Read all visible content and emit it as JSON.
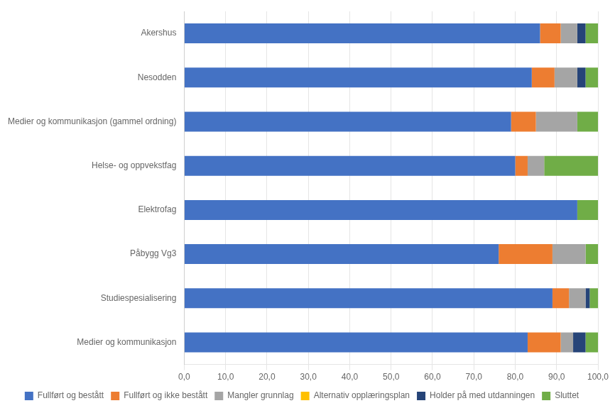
{
  "chart_data": {
    "type": "bar",
    "orientation": "horizontal",
    "stacked": true,
    "categories": [
      "Medier og kommunikasjon",
      "Studiespesialisering",
      "Påbygg Vg3",
      "Elektrofag",
      "Helse- og oppvekstfag",
      "Medier og kommunikasjon (gammel ordning)",
      "Nesodden",
      "Akershus"
    ],
    "series": [
      {
        "name": "Fullført og bestått",
        "color": "#4472C4",
        "values": [
          83.0,
          89.0,
          76.0,
          95.0,
          80.0,
          79.0,
          84.0,
          86.0
        ]
      },
      {
        "name": "Fullført og ikke bestått",
        "color": "#ED7D31",
        "values": [
          8.0,
          4.0,
          13.0,
          0.0,
          3.0,
          6.0,
          5.5,
          5.0
        ]
      },
      {
        "name": "Mangler grunnlag",
        "color": "#A5A5A5",
        "values": [
          3.0,
          4.0,
          8.0,
          0.0,
          4.0,
          10.0,
          5.5,
          4.0
        ]
      },
      {
        "name": "Alternativ opplæringsplan",
        "color": "#FFC000",
        "values": [
          0.0,
          0.0,
          0.0,
          0.0,
          0.0,
          0.0,
          0.0,
          0.0
        ]
      },
      {
        "name": "Holder på med utdanningen",
        "color": "#264478",
        "values": [
          3.0,
          1.0,
          0.0,
          0.0,
          0.0,
          0.0,
          2.0,
          2.0
        ]
      },
      {
        "name": "Sluttet",
        "color": "#70AD47",
        "values": [
          3.0,
          2.0,
          3.0,
          5.0,
          13.0,
          5.0,
          3.0,
          3.0
        ]
      }
    ],
    "xlim": [
      0,
      100
    ],
    "xticks": [
      {
        "value": 0,
        "label": "0,0"
      },
      {
        "value": 10,
        "label": "10,0"
      },
      {
        "value": 20,
        "label": "20,0"
      },
      {
        "value": 30,
        "label": "30,0"
      },
      {
        "value": 40,
        "label": "40,0"
      },
      {
        "value": 50,
        "label": "50,0"
      },
      {
        "value": 60,
        "label": "60,0"
      },
      {
        "value": 70,
        "label": "70,0"
      },
      {
        "value": 80,
        "label": "80,0"
      },
      {
        "value": 90,
        "label": "90,0"
      },
      {
        "value": 100,
        "label": "100,0"
      }
    ],
    "grid": true,
    "legend": "bottom"
  }
}
